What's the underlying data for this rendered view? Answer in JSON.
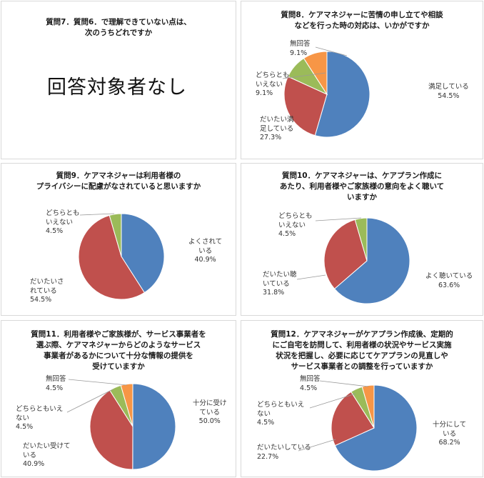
{
  "colors": {
    "blue": "#4f81bd",
    "red": "#c0504d",
    "green": "#9bbb59",
    "orange": "#f79646"
  },
  "panels": {
    "q7": {
      "title": "質問7．質問6．で理解できていない点は、\n次のうちどれですか",
      "note": "回答対象者なし"
    },
    "q8": {
      "title": "質問8．ケアマネジャーに苦情の申し立てや相談\nなどを行った時の対応は、いかがですか"
    },
    "q9": {
      "title": "質問9．ケアマネジャーは利用者様の\nプライバシーに配慮がなされていると思いますか"
    },
    "q10": {
      "title": "質問10．ケアマネジャーは、ケアプラン作成に\nあたり、利用者様やご家族様の意向をよく聴いて\nいますか"
    },
    "q11": {
      "title": "質問11．利用者様やご家族様が、サービス事業者を\n選ぶ際、ケアマネジャーからどのようなサービス\n事業者があるかについて十分な情報の提供を\n受けていますか"
    },
    "q12": {
      "title": "質問12．ケアマネジャーがケアプラン作成後、定期的\nにご自宅を訪問して、利用者様の状況やサービス実施\n状況を把握し、必要に応じてケアプランの見直しや\nサービス事業者との調整を行っていますか"
    }
  },
  "chart_data": [
    {
      "id": "q8",
      "type": "pie",
      "slices": [
        {
          "label": "満足している",
          "value": 54.5,
          "text": "54.5%",
          "color": "blue"
        },
        {
          "label": "だいたい満\n足している",
          "value": 27.3,
          "text": "27.3%",
          "color": "red"
        },
        {
          "label": "どちらとも\nいえない",
          "value": 9.1,
          "text": "9.1%",
          "color": "green"
        },
        {
          "label": "無回答",
          "value": 9.1,
          "text": "9.1%",
          "color": "orange"
        }
      ]
    },
    {
      "id": "q9",
      "type": "pie",
      "slices": [
        {
          "label": "よくされて\nいる",
          "value": 40.9,
          "text": "40.9%",
          "color": "blue"
        },
        {
          "label": "だいたいさ\nれている",
          "value": 54.5,
          "text": "54.5%",
          "color": "red"
        },
        {
          "label": "どちらとも\nいえない",
          "value": 4.5,
          "text": "4.5%",
          "color": "green"
        }
      ]
    },
    {
      "id": "q10",
      "type": "pie",
      "slices": [
        {
          "label": "よく聴いている",
          "value": 63.6,
          "text": "63.6%",
          "color": "blue"
        },
        {
          "label": "だいたい聴\nいている",
          "value": 31.8,
          "text": "31.8%",
          "color": "red"
        },
        {
          "label": "どちらとも\nいえない",
          "value": 4.5,
          "text": "4.5%",
          "color": "green"
        }
      ]
    },
    {
      "id": "q11",
      "type": "pie",
      "slices": [
        {
          "label": "十分に受け\nている",
          "value": 50.0,
          "text": "50.0%",
          "color": "blue"
        },
        {
          "label": "だいたい受けて\nいる",
          "value": 40.9,
          "text": "40.9%",
          "color": "red"
        },
        {
          "label": "どちらともいえ\nない",
          "value": 4.5,
          "text": "4.5%",
          "color": "green"
        },
        {
          "label": "無回答",
          "value": 4.5,
          "text": "4.5%",
          "color": "orange"
        }
      ]
    },
    {
      "id": "q12",
      "type": "pie",
      "slices": [
        {
          "label": "十分にして\nいる",
          "value": 68.2,
          "text": "68.2%",
          "color": "blue"
        },
        {
          "label": "だいたいしている",
          "value": 22.7,
          "text": "22.7%",
          "color": "red"
        },
        {
          "label": "どちらともいえ\nない",
          "value": 4.5,
          "text": "4.5%",
          "color": "green"
        },
        {
          "label": "無回答",
          "value": 4.5,
          "text": "4.5%",
          "color": "orange"
        }
      ]
    }
  ]
}
